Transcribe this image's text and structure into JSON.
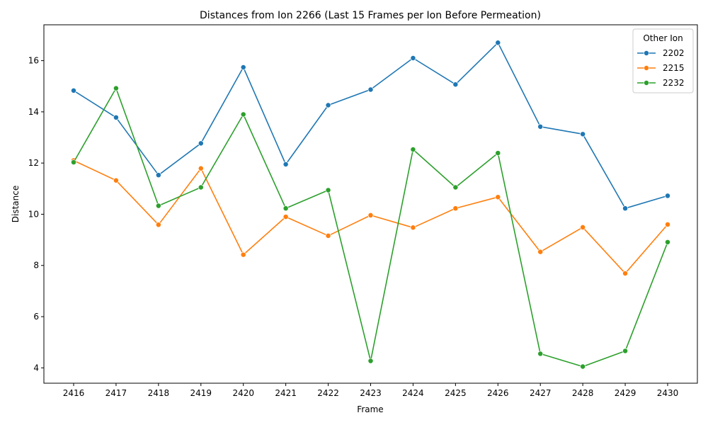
{
  "chart_data": {
    "type": "line",
    "title": "Distances from Ion 2266 (Last 15 Frames per Ion Before Permeation)",
    "xlabel": "Frame",
    "ylabel": "Distance",
    "x": [
      "2416",
      "2417",
      "2418",
      "2419",
      "2420",
      "2421",
      "2422",
      "2423",
      "2424",
      "2425",
      "2426",
      "2427",
      "2428",
      "2429",
      "2430"
    ],
    "yticks": [
      "4",
      "6",
      "8",
      "10",
      "12",
      "14",
      "16"
    ],
    "ylim": [
      3.4,
      17.4
    ],
    "grid": false,
    "legend": {
      "title": "Other Ion",
      "placement": "top-right"
    },
    "series": [
      {
        "name": "2202",
        "color": "#1f77b4",
        "values": [
          14.83,
          13.78,
          11.53,
          12.77,
          15.74,
          11.95,
          14.26,
          14.87,
          16.1,
          15.07,
          16.7,
          13.42,
          13.13,
          10.23,
          10.72
        ]
      },
      {
        "name": "2215",
        "color": "#ff7f0e",
        "values": [
          12.1,
          11.32,
          9.59,
          11.79,
          8.42,
          9.9,
          9.16,
          9.96,
          9.48,
          10.23,
          10.67,
          8.53,
          9.49,
          7.69,
          9.6
        ]
      },
      {
        "name": "2232",
        "color": "#2ca02c",
        "values": [
          12.03,
          14.92,
          10.33,
          11.05,
          13.9,
          10.23,
          10.94,
          4.27,
          12.53,
          11.05,
          12.39,
          4.55,
          4.05,
          4.66,
          8.91
        ]
      }
    ]
  }
}
